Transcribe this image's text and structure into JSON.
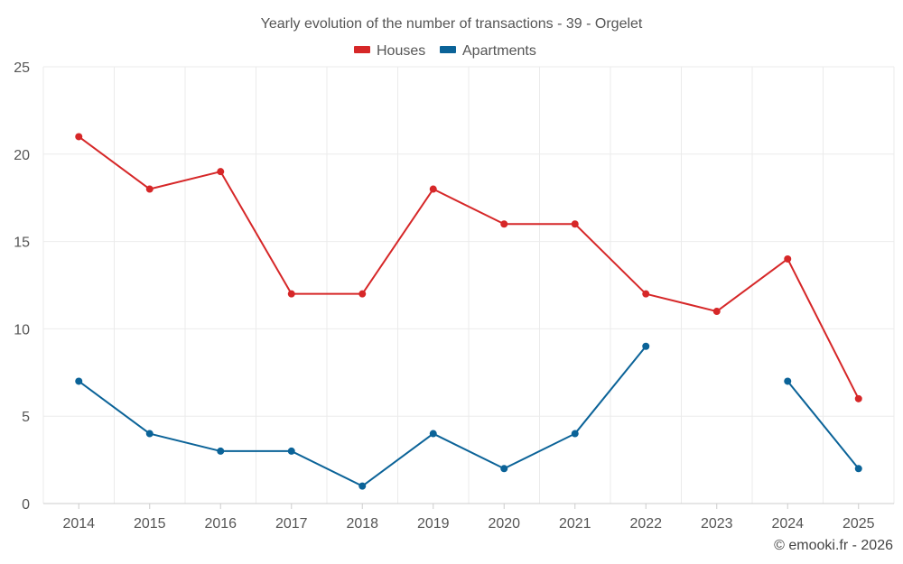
{
  "chart_data": {
    "type": "line",
    "title": "Yearly evolution of the number of transactions - 39 - Orgelet",
    "xlabel": "",
    "ylabel": "",
    "ylim": [
      0,
      25
    ],
    "yticks": [
      0,
      5,
      10,
      15,
      20,
      25
    ],
    "grid": true,
    "legend_position": "top-center",
    "categories": [
      "2014",
      "2015",
      "2016",
      "2017",
      "2018",
      "2019",
      "2020",
      "2021",
      "2022",
      "2023",
      "2024",
      "2025"
    ],
    "series": [
      {
        "name": "Houses",
        "color": "#d62728",
        "values": [
          21,
          18,
          19,
          12,
          12,
          18,
          16,
          16,
          12,
          11,
          14,
          6
        ]
      },
      {
        "name": "Apartments",
        "color": "#0b6398",
        "values": [
          7,
          4,
          3,
          3,
          1,
          4,
          2,
          4,
          9,
          null,
          7,
          2
        ]
      }
    ],
    "credit": "© emooki.fr - 2026"
  }
}
